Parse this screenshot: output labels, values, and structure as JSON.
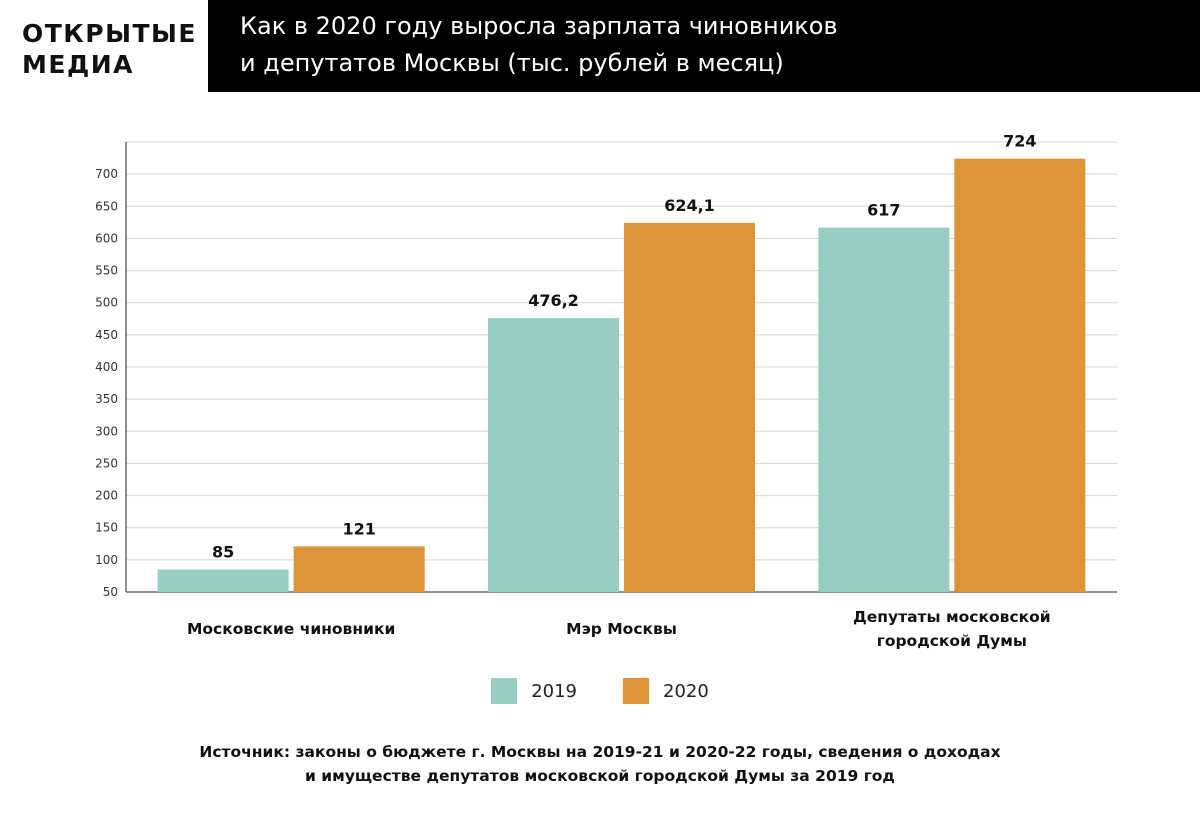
{
  "logo": {
    "line1": "ОТКРЫТЫЕ",
    "line2": "МЕДИА"
  },
  "header": {
    "title_line1": "Как в 2020 году выросла зарплата чиновников",
    "title_line2": "и депутатов Москвы (тыс. рублей в месяц)"
  },
  "colors": {
    "s2019": "#99cdc4",
    "s2020": "#dd9338"
  },
  "chart_data": {
    "type": "bar",
    "title": "Как в 2020 году выросла зарплата чиновников и депутатов Москвы (тыс. рублей в месяц)",
    "categories": [
      [
        "Московские чиновники"
      ],
      [
        "Мэр Москвы"
      ],
      [
        "Депутаты московской",
        "городской Думы"
      ]
    ],
    "series": [
      {
        "name": "2019",
        "values": [
          85,
          476.2,
          617
        ],
        "labels": [
          "85",
          "476,2",
          "617"
        ]
      },
      {
        "name": "2020",
        "values": [
          121,
          624.1,
          724
        ],
        "labels": [
          "121",
          "624,1",
          "724"
        ]
      }
    ],
    "yticks": [
      50,
      100,
      150,
      200,
      250,
      300,
      350,
      400,
      450,
      500,
      550,
      600,
      650,
      700
    ],
    "ylim": [
      50,
      750
    ],
    "grid": true,
    "legend": "bottom-center"
  },
  "legend": {
    "label_2019": "2019",
    "label_2020": "2020"
  },
  "source": {
    "line1": "Источник: законы о бюджете г. Москвы на 2019-21 и 2020-22 годы, сведения о доходах",
    "line2": "и имуществе депутатов московской городской Думы за 2019 год"
  }
}
